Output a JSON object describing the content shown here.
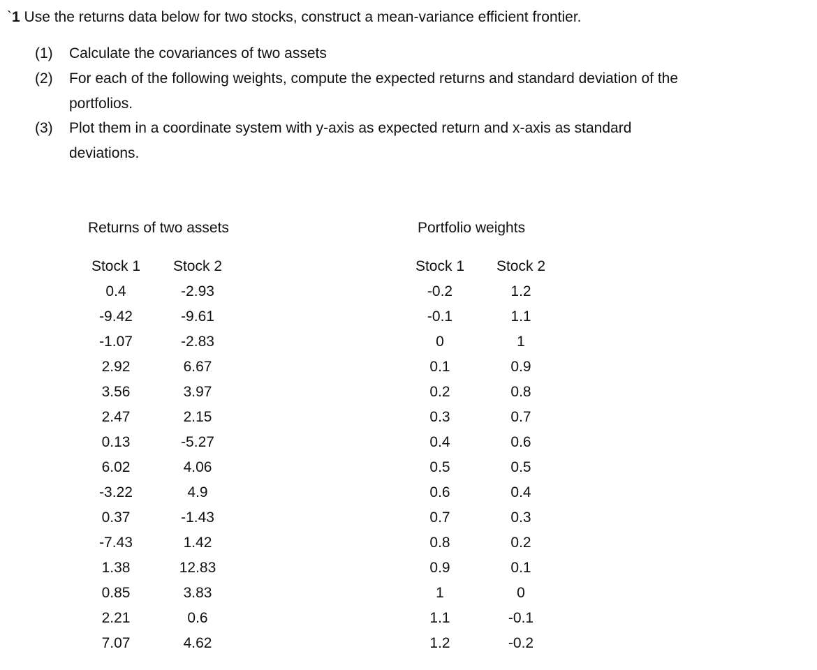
{
  "question": {
    "prefix": "`",
    "number": "1",
    "text": " Use the returns data below for two stocks, construct a mean-variance efficient frontier."
  },
  "tasks": [
    {
      "num": "(1)",
      "line1": "Calculate the covariances of two assets",
      "line2": ""
    },
    {
      "num": "(2)",
      "line1": "For each of the following weights, compute the expected returns and standard deviation of the",
      "line2": "portfolios."
    },
    {
      "num": "(3)",
      "line1": "Plot them in a coordinate system with y-axis as expected return and x-axis as standard",
      "line2": "deviations."
    }
  ],
  "returns_table": {
    "title": "Returns of two assets",
    "headers": [
      "Stock 1",
      "Stock 2"
    ],
    "stock1": [
      "0.4",
      "-9.42",
      "-1.07",
      "2.92",
      "3.56",
      "2.47",
      "0.13",
      "6.02",
      "-3.22",
      "0.37",
      "-7.43",
      "1.38",
      "0.85",
      "2.21",
      "7.07"
    ],
    "stock2": [
      "-2.93",
      "-9.61",
      "-2.83",
      "6.67",
      "3.97",
      "2.15",
      "-5.27",
      "4.06",
      "4.9",
      "-1.43",
      "1.42",
      "12.83",
      "3.83",
      "0.6",
      "4.62"
    ]
  },
  "weights_table": {
    "title": "Portfolio weights",
    "headers": [
      "Stock 1",
      "Stock 2"
    ],
    "stock1": [
      "-0.2",
      "-0.1",
      "0",
      "0.1",
      "0.2",
      "0.3",
      "0.4",
      "0.5",
      "0.6",
      "0.7",
      "0.8",
      "0.9",
      "1",
      "1.1",
      "1.2"
    ],
    "stock2": [
      "1.2",
      "1.1",
      "1",
      "0.9",
      "0.8",
      "0.7",
      "0.6",
      "0.5",
      "0.4",
      "0.3",
      "0.2",
      "0.1",
      "0",
      "-0.1",
      "-0.2"
    ]
  }
}
